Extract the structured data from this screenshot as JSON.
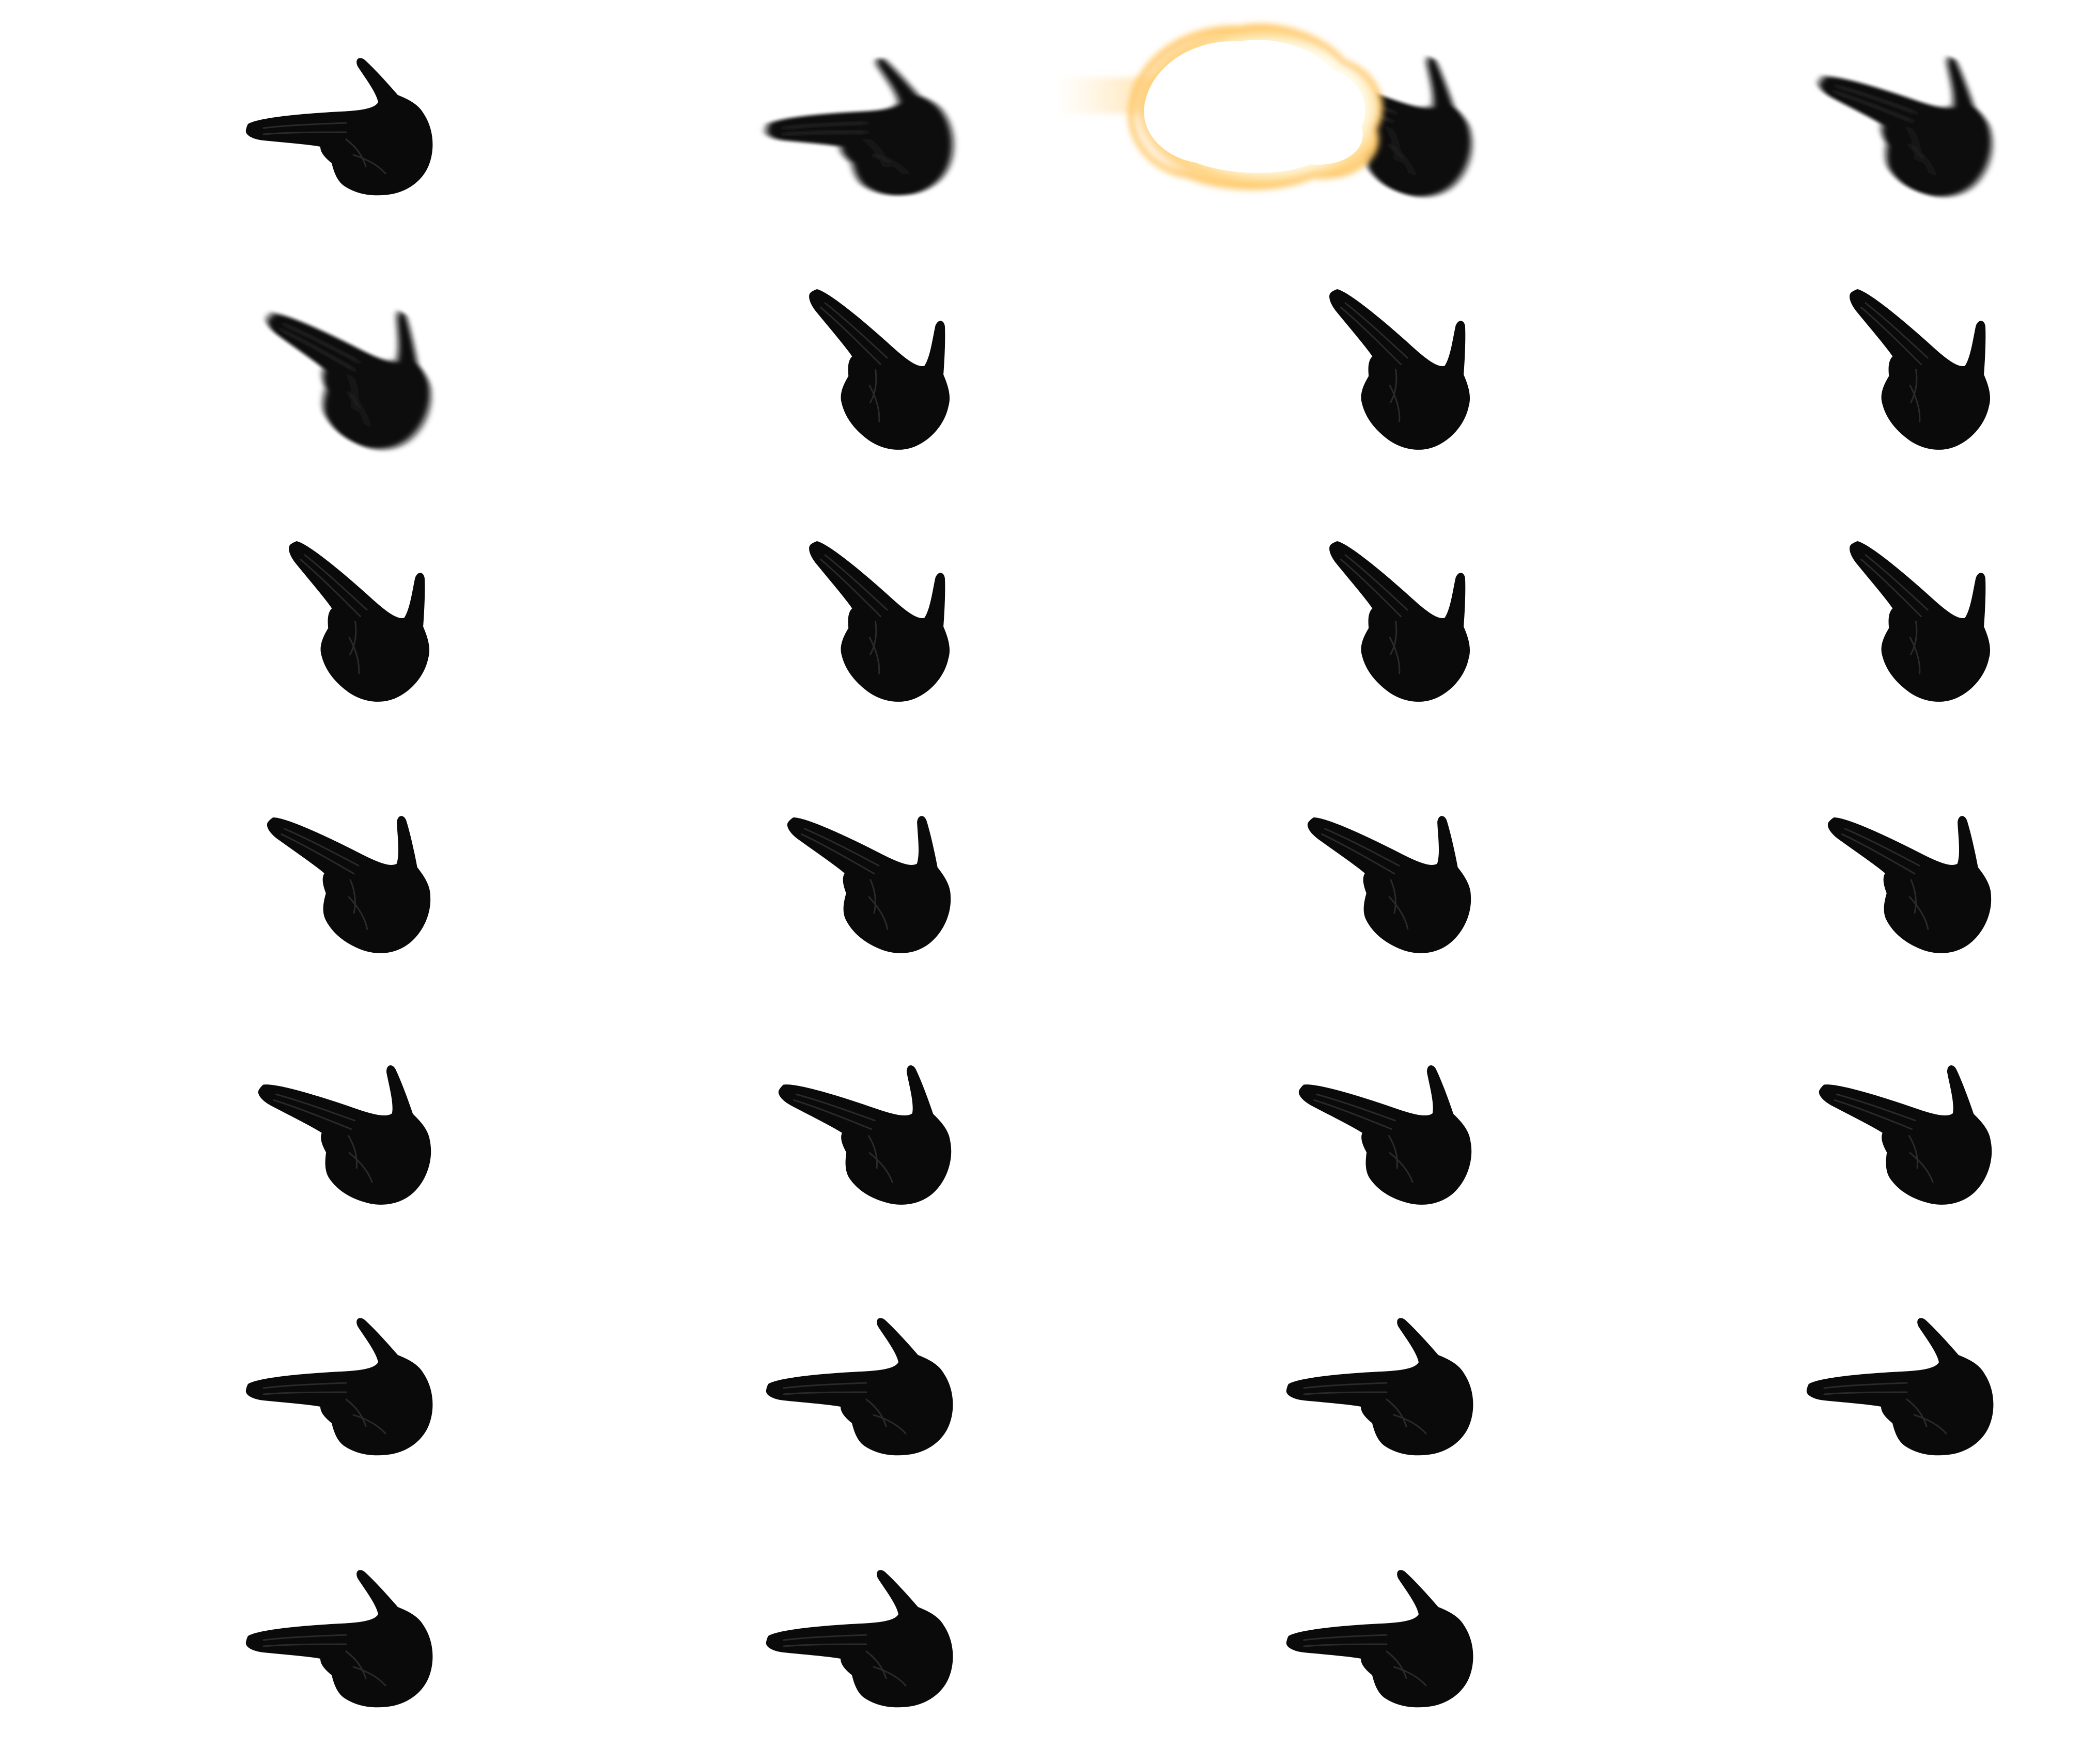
{
  "sprite_sheet": {
    "background": "#ffffff",
    "hand_color": "#0a0a0a",
    "columns": 4,
    "rows": 7,
    "frames": [
      {
        "icon": "finger-gun-hand-icon",
        "pose": "level",
        "blur": false
      },
      {
        "icon": "finger-gun-hand-icon",
        "pose": "level",
        "blur": true
      },
      {
        "icon": "finger-gun-hand-icon",
        "pose": "recoil-slight",
        "blur": true,
        "muzzle_flash": true
      },
      {
        "icon": "finger-gun-hand-icon",
        "pose": "recoil-slight",
        "blur": true
      },
      {
        "icon": "finger-gun-hand-icon",
        "pose": "recoil",
        "blur": true
      },
      {
        "icon": "finger-gun-hand-icon",
        "pose": "recoil-high",
        "blur": false
      },
      {
        "icon": "finger-gun-hand-icon",
        "pose": "recoil-high",
        "blur": false
      },
      {
        "icon": "finger-gun-hand-icon",
        "pose": "recoil-high",
        "blur": false
      },
      {
        "icon": "finger-gun-hand-icon",
        "pose": "recoil-high",
        "blur": false
      },
      {
        "icon": "finger-gun-hand-icon",
        "pose": "recoil-high",
        "blur": false
      },
      {
        "icon": "finger-gun-hand-icon",
        "pose": "recoil-high",
        "blur": false
      },
      {
        "icon": "finger-gun-hand-icon",
        "pose": "recoil-high",
        "blur": false
      },
      {
        "icon": "finger-gun-hand-icon",
        "pose": "recoil",
        "blur": false
      },
      {
        "icon": "finger-gun-hand-icon",
        "pose": "recoil",
        "blur": false
      },
      {
        "icon": "finger-gun-hand-icon",
        "pose": "recoil",
        "blur": false
      },
      {
        "icon": "finger-gun-hand-icon",
        "pose": "recoil",
        "blur": false
      },
      {
        "icon": "finger-gun-hand-icon",
        "pose": "recoil-slight",
        "blur": false
      },
      {
        "icon": "finger-gun-hand-icon",
        "pose": "recoil-slight",
        "blur": false
      },
      {
        "icon": "finger-gun-hand-icon",
        "pose": "recoil-slight",
        "blur": false
      },
      {
        "icon": "finger-gun-hand-icon",
        "pose": "recoil-slight",
        "blur": false
      },
      {
        "icon": "finger-gun-hand-icon",
        "pose": "level",
        "blur": false
      },
      {
        "icon": "finger-gun-hand-icon",
        "pose": "level",
        "blur": false
      },
      {
        "icon": "finger-gun-hand-icon",
        "pose": "level",
        "blur": false
      },
      {
        "icon": "finger-gun-hand-icon",
        "pose": "level",
        "blur": false
      },
      {
        "icon": "finger-gun-hand-icon",
        "pose": "level",
        "blur": false
      },
      {
        "icon": "finger-gun-hand-icon",
        "pose": "level",
        "blur": false
      },
      {
        "icon": "finger-gun-hand-icon",
        "pose": "level",
        "blur": false
      }
    ]
  }
}
